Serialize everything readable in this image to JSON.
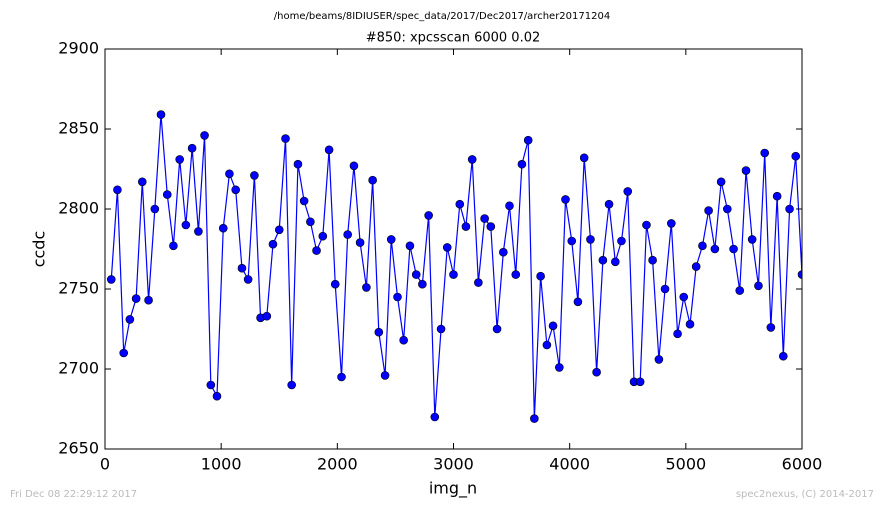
{
  "chart_data": {
    "type": "line",
    "suptitle": "/home/beams/8IDIUSER/spec_data/2017/Dec2017/archer20171204",
    "title": "#850: xpcsscan 6000 0.02",
    "xlabel": "img_n",
    "ylabel": "ccdc",
    "footer_left": "Fri Dec 08 22:29:12 2017",
    "footer_right": "spec2nexus, (C) 2014-2017",
    "xlim": [
      0,
      6000
    ],
    "xticks": [
      0,
      1000,
      2000,
      3000,
      4000,
      5000,
      6000
    ],
    "ylim": [
      2650,
      2900
    ],
    "yticks": [
      2650,
      2700,
      2750,
      2800,
      2850,
      2900
    ],
    "grid": false,
    "x": [
      54,
      107,
      161,
      214,
      268,
      321,
      375,
      429,
      482,
      536,
      589,
      643,
      696,
      750,
      804,
      857,
      911,
      964,
      1018,
      1071,
      1125,
      1179,
      1232,
      1286,
      1339,
      1393,
      1446,
      1500,
      1554,
      1607,
      1661,
      1714,
      1768,
      1821,
      1875,
      1929,
      1982,
      2036,
      2089,
      2143,
      2196,
      2250,
      2304,
      2357,
      2411,
      2464,
      2518,
      2571,
      2625,
      2679,
      2732,
      2786,
      2839,
      2893,
      2946,
      3000,
      3054,
      3107,
      3161,
      3214,
      3268,
      3321,
      3375,
      3429,
      3482,
      3536,
      3589,
      3643,
      3696,
      3750,
      3804,
      3857,
      3911,
      3964,
      4018,
      4071,
      4125,
      4179,
      4232,
      4286,
      4339,
      4393,
      4446,
      4500,
      4554,
      4607,
      4661,
      4714,
      4768,
      4821,
      4875,
      4929,
      4982,
      5036,
      5089,
      5143,
      5196,
      5250,
      5304,
      5357,
      5411,
      5464,
      5518,
      5571,
      5625,
      5679,
      5732,
      5786,
      5839,
      5893,
      5946,
      6000
    ],
    "series": [
      {
        "name": "ccdc",
        "color": "#0000ff",
        "values": [
          2756,
          2812,
          2710,
          2731,
          2744,
          2817,
          2743,
          2800,
          2859,
          2809,
          2777,
          2831,
          2790,
          2838,
          2786,
          2846,
          2690,
          2683,
          2788,
          2822,
          2812,
          2763,
          2756,
          2821,
          2732,
          2733,
          2778,
          2787,
          2844,
          2690,
          2828,
          2805,
          2792,
          2774,
          2783,
          2837,
          2753,
          2695,
          2784,
          2827,
          2779,
          2751,
          2818,
          2723,
          2696,
          2781,
          2745,
          2718,
          2777,
          2759,
          2753,
          2796,
          2670,
          2725,
          2776,
          2759,
          2803,
          2789,
          2831,
          2754,
          2794,
          2789,
          2725,
          2773,
          2802,
          2759,
          2828,
          2843,
          2669,
          2758,
          2715,
          2727,
          2701,
          2806,
          2780,
          2742,
          2832,
          2781,
          2698,
          2768,
          2803,
          2767,
          2780,
          2811,
          2692,
          2692,
          2790,
          2768,
          2706,
          2750,
          2791,
          2722,
          2745,
          2728,
          2764,
          2777,
          2799,
          2775,
          2817,
          2800,
          2775,
          2749,
          2824,
          2781,
          2752,
          2835,
          2726,
          2808,
          2708,
          2800,
          2833,
          2759
        ]
      }
    ]
  }
}
